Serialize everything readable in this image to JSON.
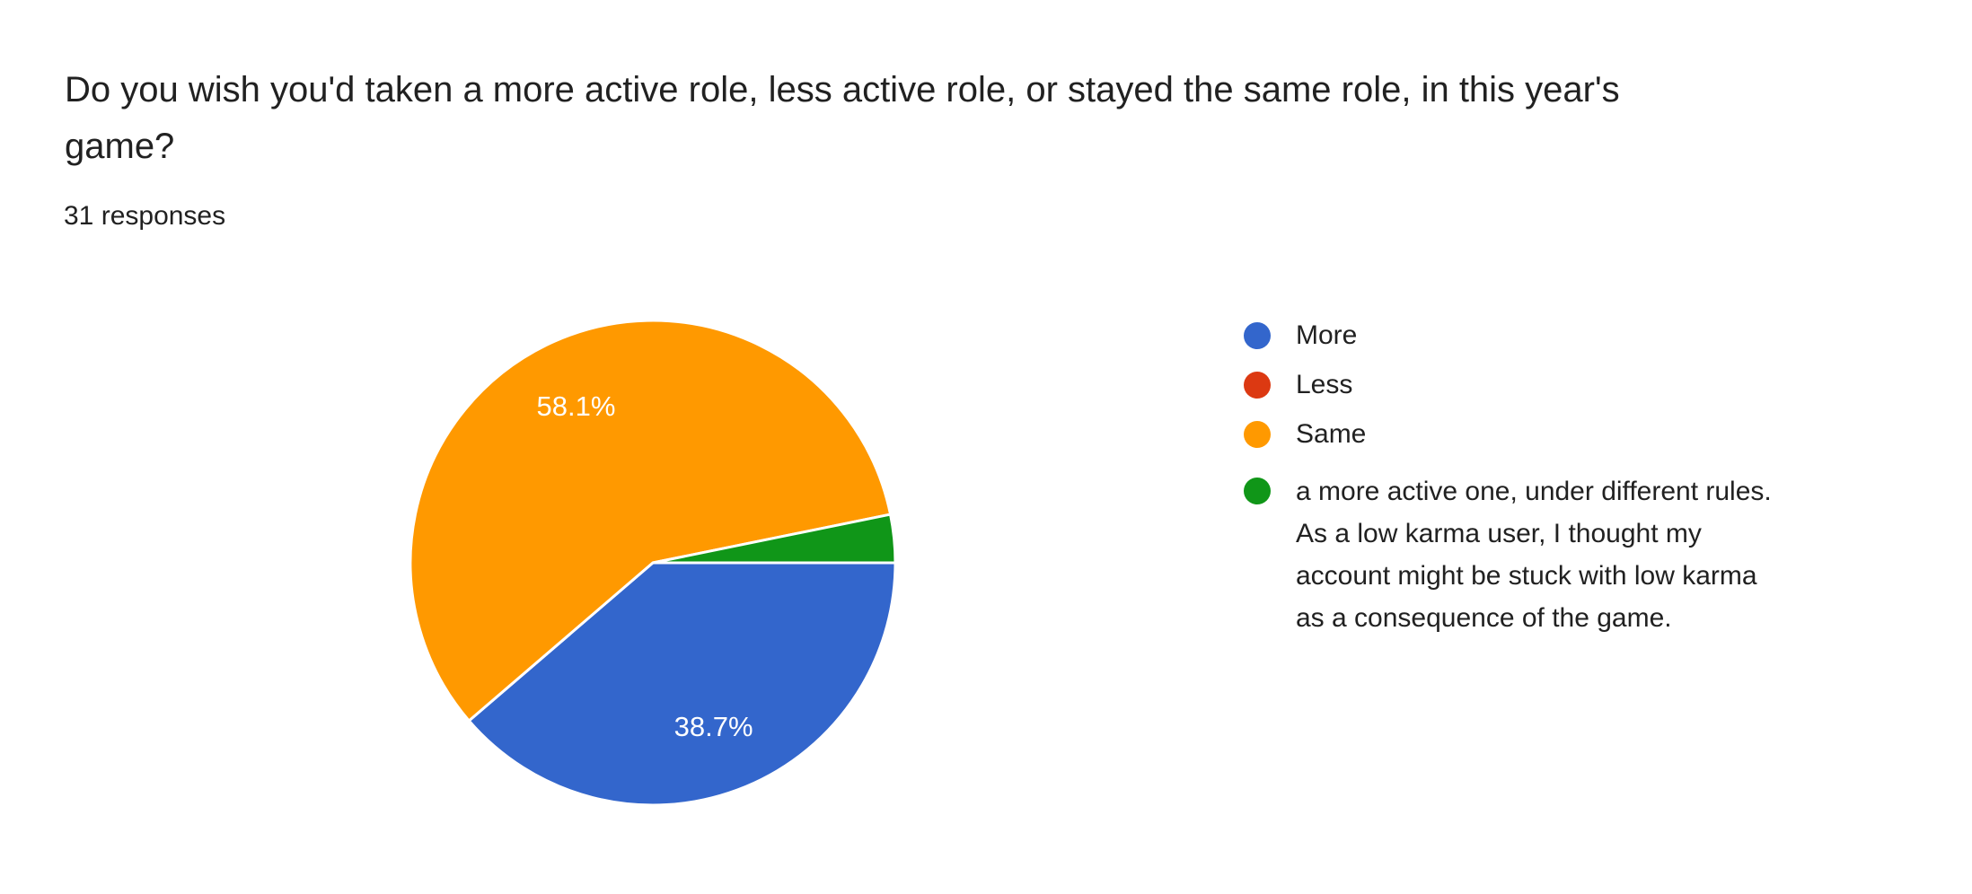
{
  "header": {
    "title_lines": [
      "Do you wish you'd taken a more active role, less active role, or stayed the same role, in this year's",
      "game?"
    ],
    "responses_label": "31 responses"
  },
  "chart_data": {
    "type": "pie",
    "title": "Do you wish you'd taken a more active role, less active role, or stayed the same role, in this year's game?",
    "subtitle": "31 responses",
    "total_responses": 31,
    "categories": [
      "More",
      "Less",
      "Same",
      "a more active one, under different rules. As a low karma user, I thought my account might be stuck with low karma as a consequence of the game."
    ],
    "slice_names": [
      "more",
      "less",
      "same",
      "other-answer"
    ],
    "values_percent": [
      38.7,
      0,
      58.1,
      3.2
    ],
    "counts": [
      12,
      0,
      18,
      1
    ],
    "colors": [
      "#3366cc",
      "#dc3912",
      "#ff9900",
      "#109618"
    ],
    "slice_labels": [
      "38.7%",
      "",
      "58.1%",
      ""
    ],
    "label_color": "#ffffff",
    "rotation_deg_clockwise_from_top": 90,
    "legend_position": "right",
    "grid": false
  },
  "legend": {
    "items": [
      {
        "label": "More",
        "color": "#3366cc"
      },
      {
        "label": "Less",
        "color": "#dc3912"
      },
      {
        "label": "Same",
        "color": "#ff9900"
      },
      {
        "color": "#109618",
        "label_lines": [
          "a more active one, under different rules.",
          "As a low karma user, I thought my",
          "account might be stuck with low karma",
          "as a consequence of the game."
        ]
      }
    ]
  }
}
